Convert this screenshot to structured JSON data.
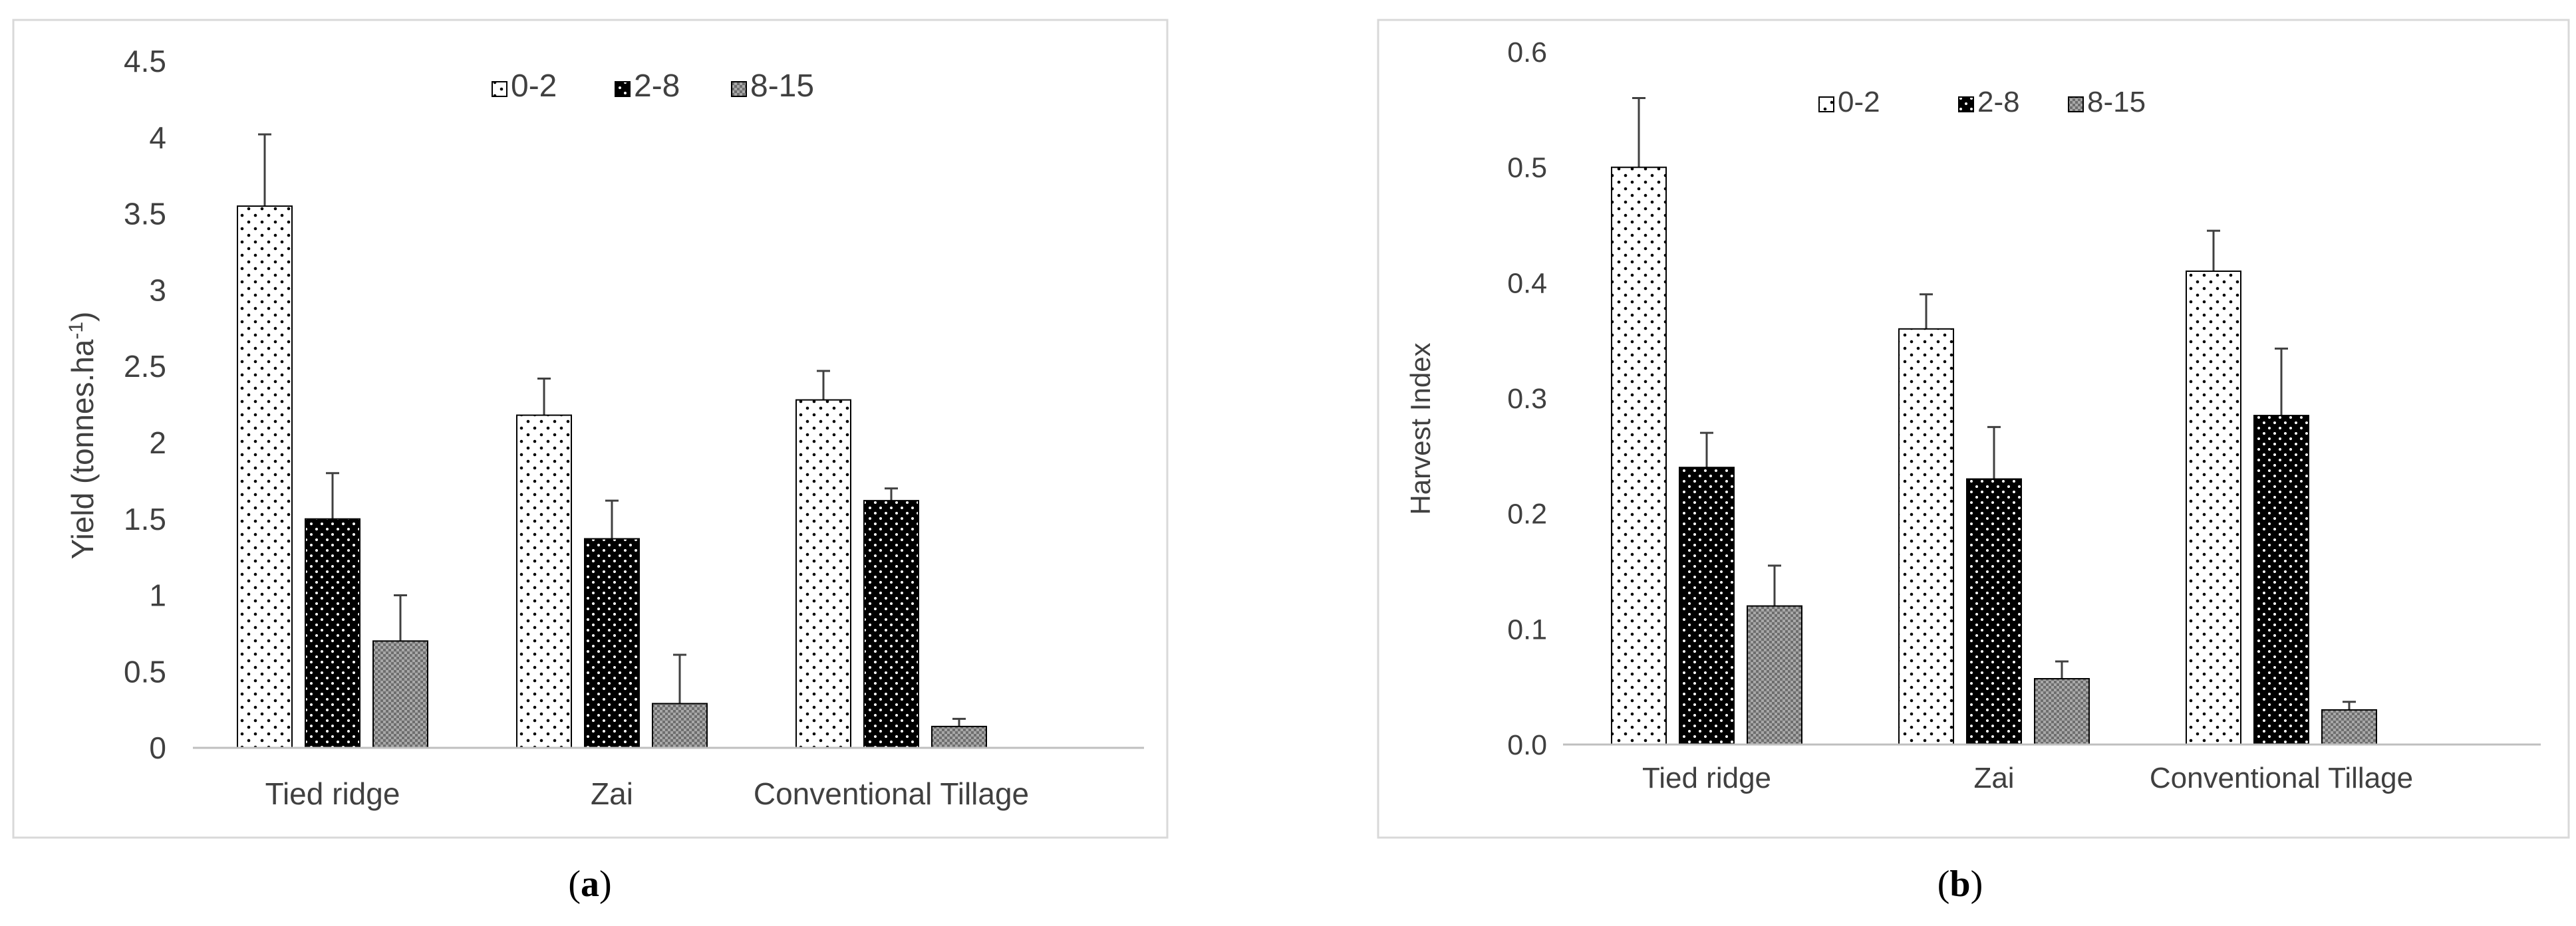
{
  "colors": {
    "frame": "#d9d9d9",
    "axis": "#bfbfbf",
    "bar_stroke": "#000000",
    "text": "#404040"
  },
  "chart_data": [
    {
      "type": "bar",
      "panel_label": "(a)",
      "panel_letter": "a",
      "ylabel_main": "Yield (tonnes.ha",
      "ylabel_sup": "-1",
      "ylabel_close": ")",
      "xlabel": "",
      "ylim": [
        0,
        4.5
      ],
      "yticks": [
        "0",
        "0.5",
        "1",
        "1.5",
        "2",
        "2.5",
        "3",
        "3.5",
        "4",
        "4.5"
      ],
      "categories": [
        "Tied ridge",
        "Zai",
        "Conventional Tillage"
      ],
      "legend_position": "top-center",
      "series": [
        {
          "name": "0-2",
          "pattern": "sparse-dots",
          "values": [
            3.55,
            2.18,
            2.28
          ],
          "errors": [
            0.47,
            0.24,
            0.19
          ]
        },
        {
          "name": "2-8",
          "pattern": "black-dots",
          "values": [
            1.5,
            1.37,
            1.62
          ],
          "errors": [
            0.3,
            0.25,
            0.08
          ]
        },
        {
          "name": "8-15",
          "pattern": "dense-grid",
          "values": [
            0.7,
            0.29,
            0.14
          ],
          "errors": [
            0.3,
            0.32,
            0.05
          ]
        }
      ]
    },
    {
      "type": "bar",
      "panel_label": "(b)",
      "panel_letter": "b",
      "ylabel_main": "Harvest Index",
      "ylabel_sup": "",
      "ylabel_close": "",
      "xlabel": "",
      "ylim": [
        0,
        0.6
      ],
      "yticks": [
        "0.0",
        "0.1",
        "0.2",
        "0.3",
        "0.4",
        "0.5",
        "0.6"
      ],
      "categories": [
        "Tied ridge",
        "Zai",
        "Conventional Tillage"
      ],
      "legend_position": "top-center",
      "series": [
        {
          "name": "0-2",
          "pattern": "sparse-dots",
          "values": [
            0.5,
            0.36,
            0.41
          ],
          "errors": [
            0.06,
            0.03,
            0.035
          ]
        },
        {
          "name": "2-8",
          "pattern": "black-dots",
          "values": [
            0.24,
            0.23,
            0.285
          ],
          "errors": [
            0.03,
            0.045,
            0.058
          ]
        },
        {
          "name": "8-15",
          "pattern": "dense-grid",
          "values": [
            0.12,
            0.057,
            0.03
          ],
          "errors": [
            0.035,
            0.015,
            0.007
          ]
        }
      ]
    }
  ]
}
